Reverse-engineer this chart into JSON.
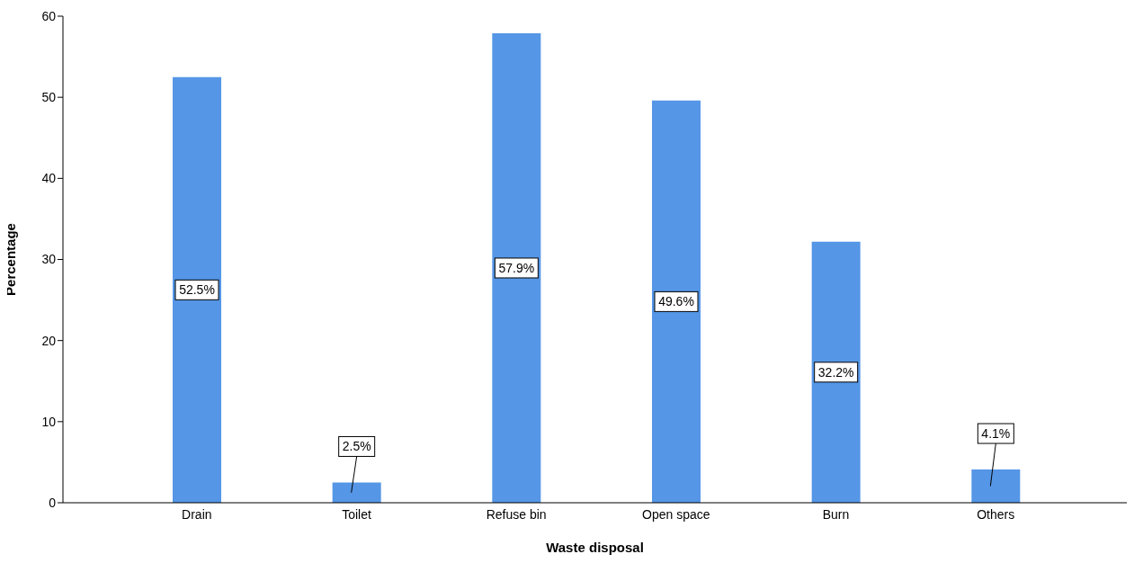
{
  "chart_data": {
    "type": "bar",
    "xlabel": "Waste disposal",
    "ylabel": "Percentage",
    "categories": [
      "Drain",
      "Toilet",
      "Refuse bin",
      "Open space",
      "Burn",
      "Others"
    ],
    "values": [
      52.5,
      2.5,
      57.9,
      49.6,
      32.2,
      4.1
    ],
    "value_labels": [
      "52.5%",
      "2.5%",
      "57.9%",
      "49.6%",
      "32.2%",
      "4.1%"
    ],
    "color": "#5596e6",
    "ylim": [
      0,
      60
    ],
    "yticks": [
      0,
      10,
      20,
      30,
      40,
      50,
      60
    ],
    "grid": false
  }
}
